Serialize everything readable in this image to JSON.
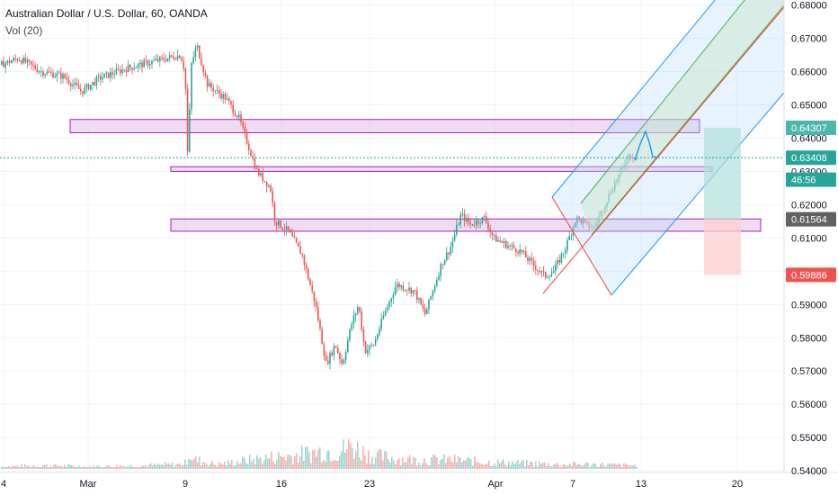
{
  "header": {
    "title": "Australian Dollar / U.S. Dollar, 60, OANDA",
    "volume": "Vol (20)"
  },
  "colors": {
    "up": "#26a69a",
    "down": "#ef5350",
    "zone_fill": "#e1bee7",
    "zone_border": "#9c27b0",
    "channel_outer": "#2196f3",
    "channel_fill": "#bbdefb",
    "channel_inner": "#4caf50",
    "channel_inner_fill": "#c8e6c9",
    "median": "#f44336",
    "target": "#4db6ac",
    "target_fill": "#b2dfdb",
    "stop_fill": "#ffcdd2",
    "stop": "#ef5350",
    "current": "#26a69a"
  },
  "chart_data": {
    "type": "candlestick",
    "ylim": [
      0.5395,
      0.6815
    ],
    "y_ticks": [
      "0.68000",
      "0.67000",
      "0.66000",
      "0.65000",
      "0.64000",
      "0.63000",
      "0.62000",
      "0.61000",
      "0.60000",
      "0.59000",
      "0.58000",
      "0.57000",
      "0.56000",
      "0.55000",
      "0.54000"
    ],
    "x_ticks": [
      "4",
      "Mar",
      "9",
      "16",
      "23",
      "Apr",
      "7",
      "13",
      "20"
    ],
    "price_labels": [
      {
        "label": "0.64307",
        "value": 0.6431,
        "kind": "target"
      },
      {
        "label": "0.63408",
        "value": 0.6341,
        "kind": "current"
      },
      {
        "label": "46:56",
        "value": 0.6275,
        "kind": "countdown"
      },
      {
        "label": "0.61564",
        "value": 0.6156,
        "kind": "entry"
      },
      {
        "label": "0.59886",
        "value": 0.5989,
        "kind": "stop"
      }
    ],
    "price_path": [
      [
        0,
        0.662
      ],
      [
        20,
        0.664
      ],
      [
        45,
        0.66
      ],
      [
        70,
        0.6585
      ],
      [
        90,
        0.654
      ],
      [
        110,
        0.658
      ],
      [
        140,
        0.661
      ],
      [
        170,
        0.663
      ],
      [
        200,
        0.665
      ],
      [
        205,
        0.66
      ],
      [
        208,
        0.634
      ],
      [
        212,
        0.662
      ],
      [
        218,
        0.668
      ],
      [
        230,
        0.656
      ],
      [
        250,
        0.652
      ],
      [
        265,
        0.646
      ],
      [
        275,
        0.638
      ],
      [
        285,
        0.63
      ],
      [
        300,
        0.625
      ],
      [
        305,
        0.615
      ],
      [
        320,
        0.612
      ],
      [
        335,
        0.605
      ],
      [
        350,
        0.59
      ],
      [
        362,
        0.572
      ],
      [
        372,
        0.578
      ],
      [
        380,
        0.572
      ],
      [
        390,
        0.584
      ],
      [
        398,
        0.59
      ],
      [
        405,
        0.576
      ],
      [
        415,
        0.578
      ],
      [
        425,
        0.586
      ],
      [
        440,
        0.596
      ],
      [
        460,
        0.594
      ],
      [
        472,
        0.587
      ],
      [
        490,
        0.602
      ],
      [
        500,
        0.607
      ],
      [
        512,
        0.617
      ],
      [
        522,
        0.614
      ],
      [
        538,
        0.616
      ],
      [
        548,
        0.61
      ],
      [
        562,
        0.608
      ],
      [
        578,
        0.606
      ],
      [
        592,
        0.602
      ],
      [
        605,
        0.5985
      ],
      [
        615,
        0.6
      ],
      [
        628,
        0.607
      ],
      [
        640,
        0.616
      ],
      [
        652,
        0.614
      ],
      [
        660,
        0.613
      ],
      [
        670,
        0.619
      ],
      [
        680,
        0.625
      ],
      [
        690,
        0.63
      ],
      [
        698,
        0.635
      ],
      [
        708,
        0.634
      ]
    ],
    "volume_path": [
      [
        0,
        0.2
      ],
      [
        50,
        0.3
      ],
      [
        100,
        0.2
      ],
      [
        160,
        0.3
      ],
      [
        200,
        0.4
      ],
      [
        205,
        0.5
      ],
      [
        209,
        1.5
      ],
      [
        215,
        0.8
      ],
      [
        240,
        0.4
      ],
      [
        280,
        0.8
      ],
      [
        300,
        1.0
      ],
      [
        330,
        1.2
      ],
      [
        360,
        1.6
      ],
      [
        375,
        1.5
      ],
      [
        390,
        2.0
      ],
      [
        410,
        1.2
      ],
      [
        430,
        1.0
      ],
      [
        460,
        0.8
      ],
      [
        500,
        0.8
      ],
      [
        540,
        0.6
      ],
      [
        580,
        0.5
      ],
      [
        620,
        0.4
      ],
      [
        660,
        0.4
      ],
      [
        700,
        0.3
      ]
    ],
    "zones": [
      {
        "x": [
          78,
          778
        ],
        "y": [
          0.6456,
          0.6416
        ]
      },
      {
        "x": [
          190,
          792
        ],
        "y": [
          0.6314,
          0.63
        ]
      },
      {
        "x": [
          190,
          846
        ],
        "y": [
          0.6157,
          0.612
        ]
      }
    ],
    "channel": {
      "outer_left": [
        0.607,
        0.585
      ],
      "outer_right": [
        0.7,
        0.65
      ],
      "median_start": [
        0.583,
        604
      ]
    },
    "position": {
      "entry": 0.6156,
      "target": 0.6431,
      "stop": 0.5989
    }
  }
}
